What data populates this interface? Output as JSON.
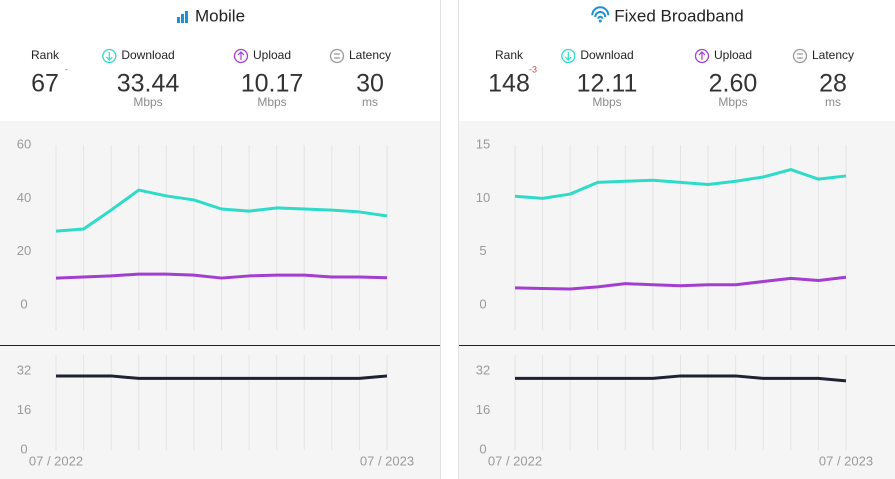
{
  "panels": [
    {
      "title": "Mobile",
      "stats": [
        {
          "label": "Rank",
          "value": "67",
          "change": "-"
        },
        {
          "label": "Download",
          "value": "33.44",
          "unit": "Mbps"
        },
        {
          "label": "Upload",
          "value": "10.17",
          "unit": "Mbps"
        },
        {
          "label": "Latency",
          "value": "30",
          "unit": "ms"
        }
      ]
    },
    {
      "title": "Fixed Broadband",
      "stats": [
        {
          "label": "Rank",
          "value": "148",
          "change": "-3"
        },
        {
          "label": "Download",
          "value": "12.11",
          "unit": "Mbps"
        },
        {
          "label": "Upload",
          "value": "2.60",
          "unit": "Mbps"
        },
        {
          "label": "Latency",
          "value": "28",
          "unit": "ms"
        }
      ]
    }
  ],
  "chart_data": [
    {
      "type": "line",
      "categories": [
        null,
        null,
        null,
        null,
        null,
        null,
        null,
        null,
        null,
        null,
        null,
        null,
        null
      ],
      "series": [
        {
          "color": "#2edbc9",
          "values": [
            27.7,
            28.5,
            35.6,
            43.1,
            40.9,
            39.4,
            36,
            35.2,
            36.4,
            36,
            35.6,
            34.9,
            33.4
          ]
        },
        {
          "color": "#a33fcf",
          "values": [
            10.1,
            10.5,
            10.9,
            11.6,
            11.6,
            11.2,
            10.1,
            10.9,
            11.2,
            11.2,
            10.5,
            10.5,
            10.2
          ]
        }
      ],
      "ylim": [
        0,
        60
      ],
      "yticks": [
        0,
        20,
        40,
        60
      ],
      "grid": true
    },
    {
      "type": "line",
      "categories": [
        "07 / 2022",
        null,
        null,
        null,
        null,
        null,
        null,
        null,
        null,
        null,
        null,
        null,
        "07 / 2023"
      ],
      "series": [
        {
          "color": "#1e2233",
          "values": [
            30,
            30,
            30,
            29,
            29,
            29,
            29,
            29,
            29,
            29,
            29,
            29,
            30
          ]
        }
      ],
      "ylim": [
        0,
        32
      ],
      "yticks": [
        0,
        16,
        32
      ],
      "grid": true
    },
    {
      "type": "line",
      "categories": [
        null,
        null,
        null,
        null,
        null,
        null,
        null,
        null,
        null,
        null,
        null,
        null,
        null
      ],
      "series": [
        {
          "color": "#2edbc9",
          "values": [
            10.2,
            10,
            10.4,
            11.5,
            11.6,
            11.7,
            11.5,
            11.3,
            11.6,
            12,
            12.7,
            11.8,
            12.1
          ]
        },
        {
          "color": "#a33fcf",
          "values": [
            1.6,
            1.55,
            1.5,
            1.7,
            2,
            1.9,
            1.8,
            1.9,
            1.9,
            2.2,
            2.5,
            2.3,
            2.6
          ]
        }
      ],
      "ylim": [
        0,
        15
      ],
      "yticks": [
        0,
        5,
        10,
        15
      ],
      "grid": true
    },
    {
      "type": "line",
      "categories": [
        "07 / 2022",
        null,
        null,
        null,
        null,
        null,
        null,
        null,
        null,
        null,
        null,
        null,
        "07 / 2023"
      ],
      "series": [
        {
          "color": "#1e2233",
          "values": [
            29,
            29,
            29,
            29,
            29,
            29,
            30,
            30,
            30,
            29,
            29,
            29,
            28
          ]
        }
      ],
      "ylim": [
        0,
        32
      ],
      "yticks": [
        0,
        16,
        32
      ],
      "grid": true
    }
  ]
}
